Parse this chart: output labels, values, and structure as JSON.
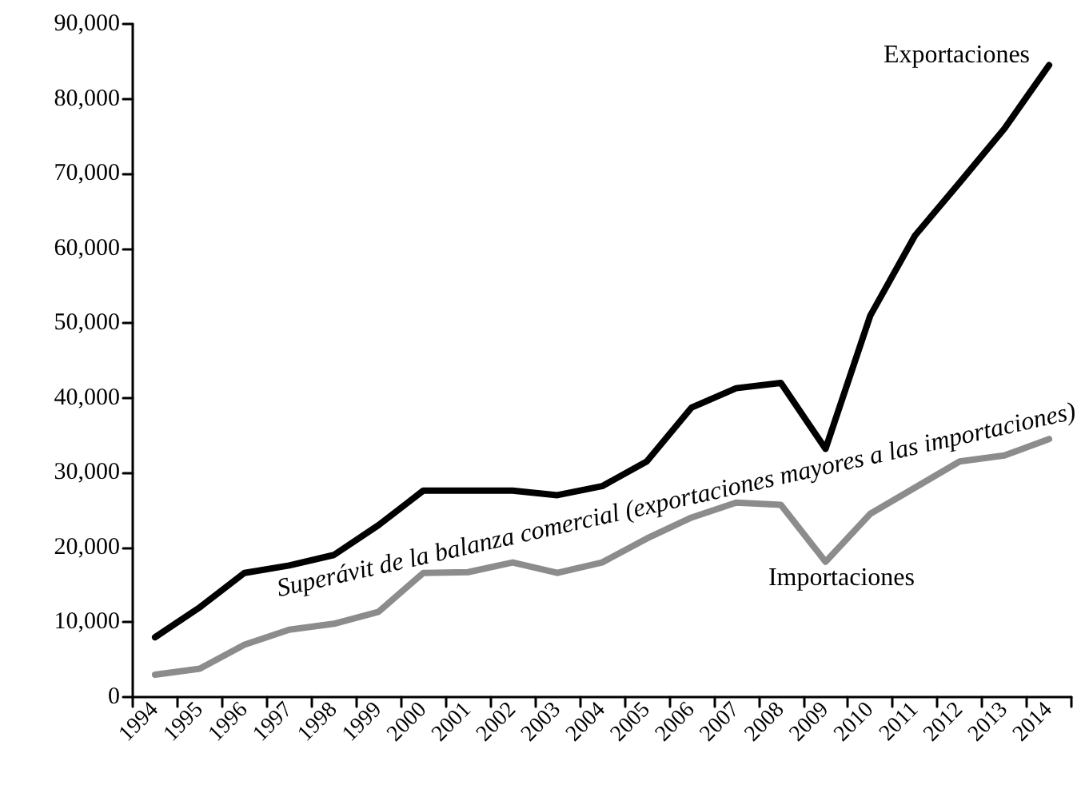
{
  "chart_data": {
    "type": "line",
    "categories": [
      "1994",
      "1995",
      "1996",
      "1997",
      "1998",
      "1999",
      "2000",
      "2001",
      "2002",
      "2003",
      "2004",
      "2005",
      "2006",
      "2007",
      "2008",
      "2009",
      "2010",
      "2011",
      "2012",
      "2013",
      "2014"
    ],
    "series": [
      {
        "name": "Exportaciones",
        "color": "#000000",
        "values": [
          8000,
          12000,
          16600,
          17600,
          19000,
          23000,
          27600,
          27600,
          27600,
          27000,
          28200,
          31500,
          38700,
          41300,
          42000,
          33200,
          51000,
          61700,
          68800,
          76000,
          84500
        ]
      },
      {
        "name": "Importaciones",
        "color": "#8c8c8c",
        "values": [
          3000,
          3800,
          7000,
          9000,
          9800,
          11400,
          16600,
          16700,
          18000,
          16600,
          18000,
          21200,
          24000,
          26000,
          25700,
          18100,
          24500,
          28000,
          31500,
          32300,
          34500
        ]
      }
    ],
    "annotations": [
      "Superávit de la balanza comercial (exportaciones mayores a las importaciones)"
    ],
    "ylim": [
      0,
      90000
    ],
    "yticks": [
      0,
      {
        "value": 10000,
        "label": "10,000"
      },
      {
        "value": 20000,
        "label": "20,000"
      },
      {
        "value": 30000,
        "label": "30,000"
      },
      {
        "value": 40000,
        "label": "40,000"
      },
      {
        "value": 50000,
        "label": "50,000"
      },
      {
        "value": 60000,
        "label": "60,000"
      },
      {
        "value": 70000,
        "label": "70,000"
      },
      {
        "value": 80000,
        "label": "80,000"
      },
      {
        "value": 90000,
        "label": "90,000"
      }
    ],
    "grid": false,
    "legend": false,
    "marker": "none",
    "line_style": "solid"
  }
}
